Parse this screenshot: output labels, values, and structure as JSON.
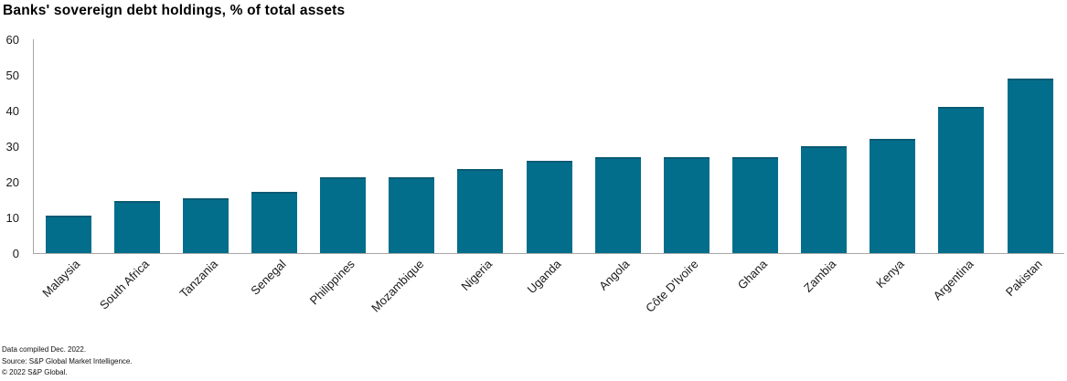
{
  "title": "Banks' sovereign debt holdings, % of total assets",
  "footer": {
    "line1": "Data compiled Dec. 2022.",
    "line2": "Source: S&P Global Market Intelligence.",
    "line3": "© 2022 S&P Global."
  },
  "colors": {
    "bar": "#036e8c",
    "bar_edge": "#0a5a73",
    "axis_line": "#a6a6a6",
    "tick_text": "#1a1a1a"
  },
  "chart_data": {
    "type": "bar",
    "title": "Banks' sovereign debt holdings, % of total assets",
    "categories": [
      "Malaysia",
      "South Africa",
      "Tanzania",
      "Senegal",
      "Philippines",
      "Mozambique",
      "Nigeria",
      "Uganda",
      "Angola",
      "Côte D'Ivoire",
      "Ghana",
      "Zambia",
      "Kenya",
      "Argentina",
      "Pakistan"
    ],
    "values": [
      10.4,
      14.7,
      15.5,
      17.3,
      21.4,
      21.4,
      23.7,
      26.0,
      27.0,
      27.0,
      27.0,
      30.0,
      32.0,
      41.0,
      49.0
    ],
    "ylabel": "",
    "xlabel": "",
    "ylim": [
      0,
      60
    ],
    "yticks": [
      0,
      10,
      20,
      30,
      40,
      50,
      60
    ],
    "grid": false,
    "legend": false,
    "x_label_rotation_deg": -45
  }
}
